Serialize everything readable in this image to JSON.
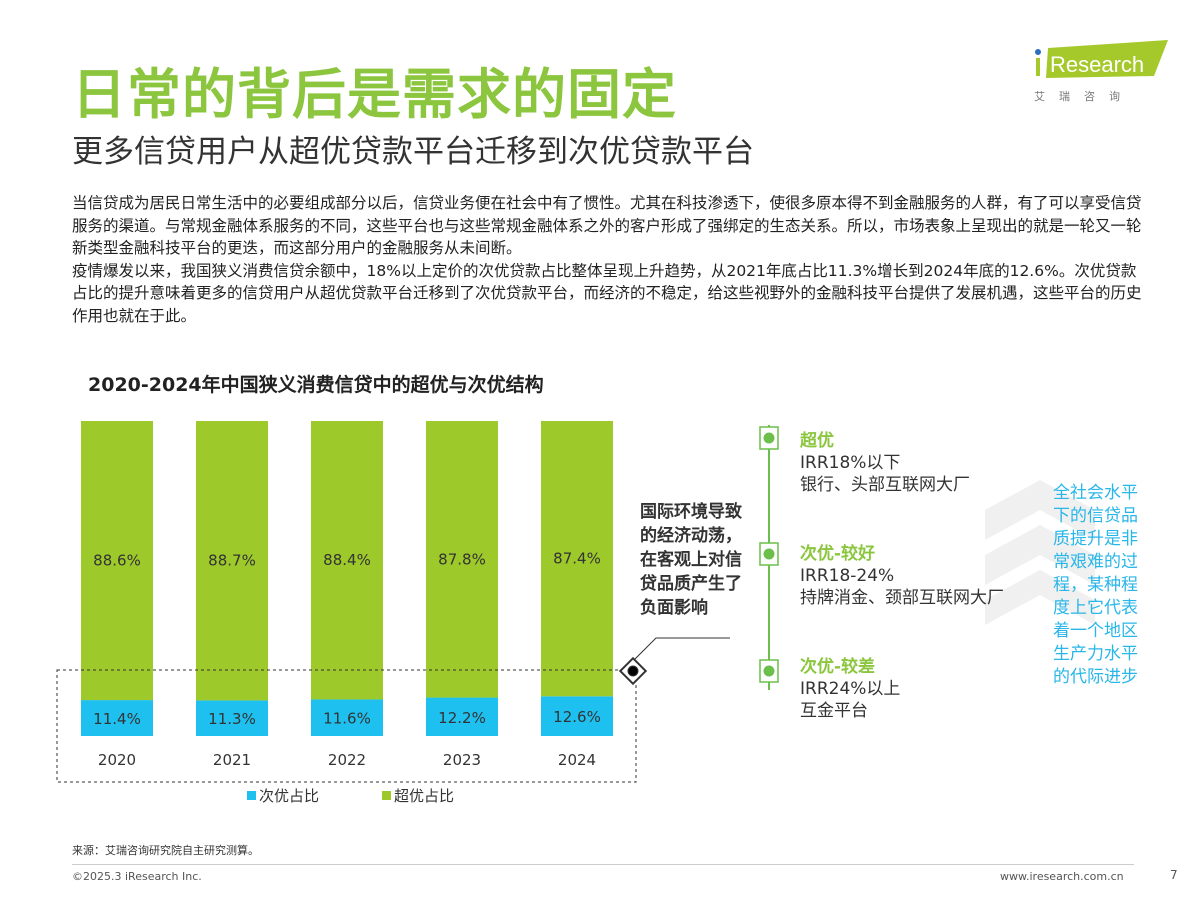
{
  "header": {
    "title": "日常的背后是需求的固定",
    "subtitle": "更多信贷用户从超优贷款平台迁移到次优贷款平台",
    "logo_text": "iResearch",
    "logo_cn": "艾瑞咨询"
  },
  "body": [
    "当信贷成为居民日常生活中的必要组成部分以后，信贷业务便在社会中有了惯性。尤其在科技渗透下，使很多原本得不到金融服务的人群，有了可以享受信贷服务的渠道。与常规金融体系服务的不同，这些平台也与这些常规金融体系之外的客户形成了强绑定的生态关系。所以，市场表象上呈现出的就是一轮又一轮新类型金融科技平台的更迭，而这部分用户的金融服务从未间断。",
    "疫情爆发以来，我国狭义消费信贷余额中，18%以上定价的次优贷款占比整体呈现上升趋势，从2021年底占比11.3%增长到2024年底的12.6%。次优贷款占比的提升意味着更多的信贷用户从超优贷款平台迁移到了次优贷款平台，而经济的不稳定，给这些视野外的金融科技平台提供了发展机遇，这些平台的历史作用也就在于此。"
  ],
  "chart_data": {
    "type": "bar",
    "stacked": true,
    "title": "2020-2024年中国狭义消费信贷中的超优与次优结构",
    "categories": [
      "2020",
      "2021",
      "2022",
      "2023",
      "2024"
    ],
    "series": [
      {
        "name": "次优占比",
        "color": "#1ec0ef",
        "values": [
          11.4,
          11.3,
          11.6,
          12.2,
          12.6
        ]
      },
      {
        "name": "超优占比",
        "color": "#9dc92a",
        "values": [
          88.6,
          88.7,
          88.4,
          87.8,
          87.4
        ]
      }
    ],
    "unit": "%",
    "ylim": [
      0,
      100
    ],
    "legend": "bottom-left",
    "grid": false
  },
  "note": "国际环境导致的经济动荡，在客观上对信贷品质产生了负面影响",
  "tiers": [
    {
      "name": "超优",
      "irr": "IRR18%以下",
      "who": "银行、头部互联网大厂"
    },
    {
      "name": "次优-较好",
      "irr": "IRR18-24%",
      "who": "持牌消金、颈部互联网大厂"
    },
    {
      "name": "次优-较差",
      "irr": "IRR24%以上",
      "who": "互金平台"
    }
  ],
  "side_text": "全社会水平下的信贷品质提升是非常艰难的过程，某种程度上它代表着一个地区生产力水平的代际进步",
  "footer": {
    "source": "来源：艾瑞咨询研究院自主研究测算。",
    "copyright": "©2025.3 iResearch Inc.",
    "url": "www.iresearch.com.cn",
    "page": "7"
  }
}
